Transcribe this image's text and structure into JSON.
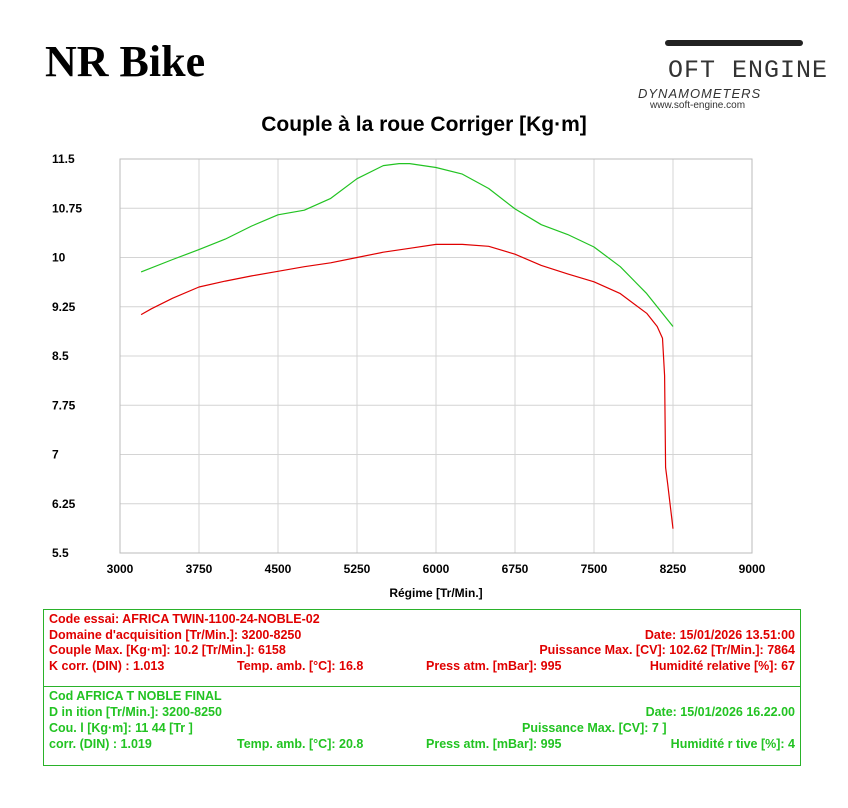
{
  "brand": "NR Bike",
  "logo": {
    "name": "OFT ENGINE",
    "tagline": "DYNAMOMETERS",
    "url": "www.soft-engine.com"
  },
  "chart_data": {
    "type": "line",
    "title": "Couple à la roue Corriger [Kg·m]",
    "xlabel": "Régime [Tr/Min.]",
    "ylabel": "",
    "xlim": [
      3000,
      9000
    ],
    "ylim": [
      5.5,
      11.5
    ],
    "xticks": [
      "3000",
      "3750",
      "4500",
      "5250",
      "6000",
      "6750",
      "7500",
      "8250",
      "9000"
    ],
    "yticks": [
      "11.5",
      "10.75",
      "10",
      "9.25",
      "8.5",
      "7.75",
      "7",
      "6.25",
      "5.5"
    ],
    "grid": true,
    "legend": "none",
    "series": [
      {
        "color": "#22c322",
        "x": [
          3200,
          3500,
          3750,
          4000,
          4250,
          4500,
          4750,
          5000,
          5250,
          5500,
          5650,
          5750,
          6000,
          6250,
          6500,
          6750,
          7000,
          7250,
          7500,
          7750,
          8000,
          8250
        ],
        "y": [
          9.78,
          9.97,
          10.12,
          10.28,
          10.48,
          10.65,
          10.72,
          10.9,
          11.2,
          11.4,
          11.43,
          11.43,
          11.37,
          11.27,
          11.05,
          10.74,
          10.5,
          10.35,
          10.16,
          9.86,
          9.45,
          8.95
        ]
      },
      {
        "color": "#e00000",
        "x": [
          3200,
          3300,
          3500,
          3750,
          4000,
          4250,
          4500,
          4750,
          5000,
          5250,
          5500,
          5750,
          6000,
          6250,
          6500,
          6750,
          7000,
          7250,
          7500,
          7750,
          8000,
          8100,
          8150,
          8170,
          8180,
          8200,
          8250
        ],
        "y": [
          9.13,
          9.22,
          9.38,
          9.55,
          9.64,
          9.72,
          9.79,
          9.86,
          9.92,
          10.0,
          10.08,
          10.14,
          10.2,
          10.2,
          10.17,
          10.05,
          9.88,
          9.75,
          9.63,
          9.45,
          9.15,
          8.95,
          8.77,
          8.2,
          6.8,
          6.55,
          5.87
        ]
      }
    ]
  },
  "info": {
    "run1": {
      "code": "Code essai: AFRICA TWIN-1100-24-NOBLE-02",
      "domaine": "Domaine d'acquisition [Tr/Min.]: 3200-8250",
      "date": "Date: 15/01/2026   13.51:00",
      "couple": "Couple Max. [Kg·m]: 10.2   [Tr/Min.]: 6158",
      "puissance": "Puissance Max. [CV]: 102.62   [Tr/Min.]: 7864",
      "kcorr": "K corr. (DIN) : 1.013",
      "temp": "Temp. amb. [°C]: 16.8",
      "press": "Press atm. [mBar]: 995",
      "humid": "Humidité relative [%]: 67"
    },
    "run2": {
      "code": "Cod      AFRICA T            NOBLE FINAL",
      "domaine": "D     in      ition [Tr/Min.]: 3200-8250",
      "date": "Date: 15/01/2026   16.22.00",
      "couple": "Cou. l         [Kg·m]: 11 44   [Tr        ]",
      "puissance": "Puissance Max. [CV]:    7          ]",
      "kcorr": "  corr. (DIN) : 1.019",
      "temp": "Temp. amb. [°C]: 20.8",
      "press": "Press atm. [mBar]: 995",
      "humid": "Humidité r    tive [%]: 4"
    }
  }
}
